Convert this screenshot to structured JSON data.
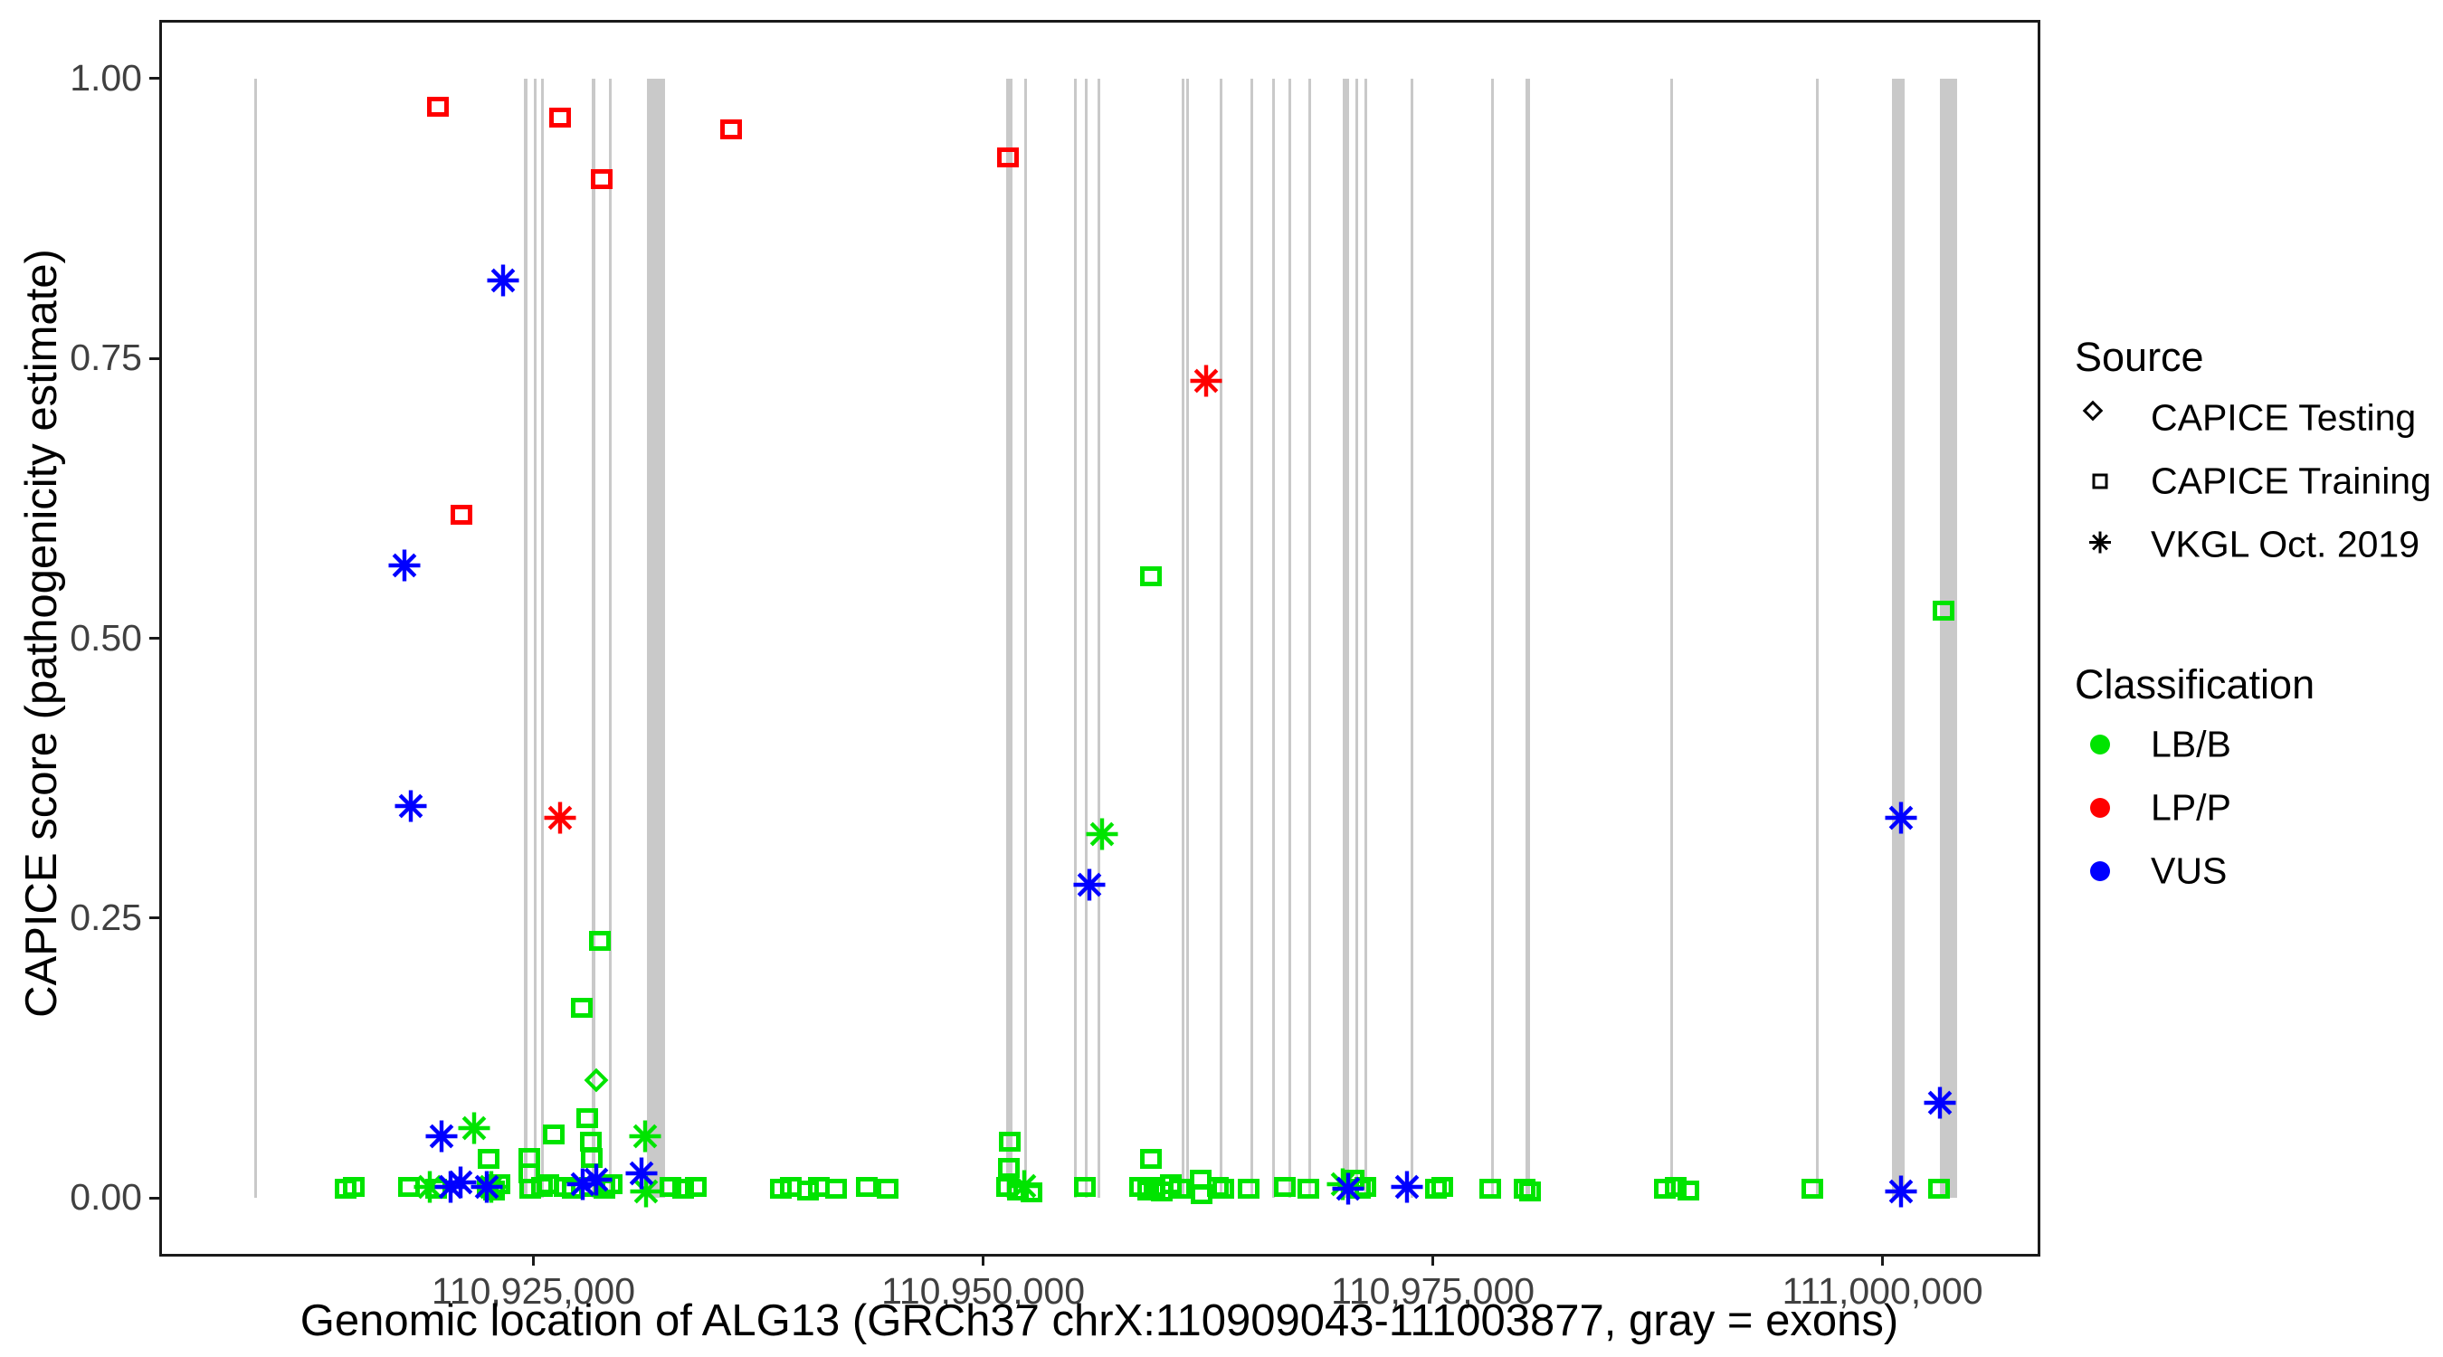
{
  "legend": {
    "source": {
      "title": "Source",
      "items": [
        {
          "label": "CAPICE Testing",
          "shape": "diamond"
        },
        {
          "label": "CAPICE Training",
          "shape": "square"
        },
        {
          "label": "VKGL Oct. 2019",
          "shape": "asterisk"
        }
      ]
    },
    "classification": {
      "title": "Classification",
      "items": [
        {
          "label": "LB/B",
          "color": "#00e400"
        },
        {
          "label": "LP/P",
          "color": "#ff0000"
        },
        {
          "label": "VUS",
          "color": "#0000ff"
        }
      ]
    }
  },
  "chart_data": {
    "type": "scatter",
    "xlabel": "Genomic location of ALG13 (GRCh37 chrX:110909043-111003877, gray = exons)",
    "ylabel": "CAPICE score (pathogenicity estimate)",
    "x_domain": [
      110904300,
      111008620
    ],
    "y_domain": [
      -0.05,
      1.05
    ],
    "grid": false,
    "legend_position": "right",
    "x_ticks": [
      {
        "value": 110925000,
        "label": "110,925,000"
      },
      {
        "value": 110950000,
        "label": "110,950,000"
      },
      {
        "value": 110975000,
        "label": "110,975,000"
      },
      {
        "value": 111000000,
        "label": "111,000,000"
      }
    ],
    "y_ticks": [
      {
        "value": 0.0,
        "label": "0.00"
      },
      {
        "value": 0.25,
        "label": "0.25"
      },
      {
        "value": 0.5,
        "label": "0.50"
      },
      {
        "value": 0.75,
        "label": "0.75"
      },
      {
        "value": 1.0,
        "label": "1.00"
      }
    ],
    "exon_color": "#c9c9c9",
    "exons": [
      [
        110909490,
        110909650
      ],
      [
        110924450,
        110924650
      ],
      [
        110925000,
        110925160
      ],
      [
        110925400,
        110925560
      ],
      [
        110928260,
        110928420
      ],
      [
        110929220,
        110929370
      ],
      [
        110931330,
        110932330
      ],
      [
        110951260,
        110951610
      ],
      [
        110952260,
        110952410
      ],
      [
        110955070,
        110955220
      ],
      [
        110955670,
        110955820
      ],
      [
        110956380,
        110956530
      ],
      [
        110961040,
        110961200
      ],
      [
        110961300,
        110961450
      ],
      [
        110963150,
        110963300
      ],
      [
        110964860,
        110965010
      ],
      [
        110966060,
        110966210
      ],
      [
        110966970,
        110967120
      ],
      [
        110968070,
        110968220
      ],
      [
        110969980,
        110970330
      ],
      [
        110970680,
        110970830
      ],
      [
        110971180,
        110971340
      ],
      [
        110973740,
        110973900
      ],
      [
        110978260,
        110978410
      ],
      [
        110980170,
        110980420
      ],
      [
        110988200,
        110988350
      ],
      [
        110996290,
        110996440
      ],
      [
        111000500,
        111001210
      ],
      [
        111003210,
        111004170
      ]
    ],
    "series": [
      {
        "name": "CAPICE Training — LB/B",
        "source": "CAPICE Training",
        "classification": "LB/B",
        "shape": "square",
        "color": "#00e400",
        "points": [
          [
            110914550,
            0.008
          ],
          [
            110915000,
            0.01
          ],
          [
            110918100,
            0.01
          ],
          [
            110919600,
            0.008
          ],
          [
            110922500,
            0.035
          ],
          [
            110922450,
            0.01
          ],
          [
            110922800,
            0.007
          ],
          [
            110923100,
            0.012
          ],
          [
            110924750,
            0.036
          ],
          [
            110924750,
            0.022
          ],
          [
            110924800,
            0.008
          ],
          [
            110925450,
            0.01
          ],
          [
            110925850,
            0.012
          ],
          [
            110926150,
            0.057
          ],
          [
            110926750,
            0.01
          ],
          [
            110927200,
            0.008
          ],
          [
            110927700,
            0.17
          ],
          [
            110928000,
            0.071
          ],
          [
            110928200,
            0.05
          ],
          [
            110928250,
            0.036
          ],
          [
            110928150,
            0.01
          ],
          [
            110928700,
            0.23
          ],
          [
            110928950,
            0.008
          ],
          [
            110929350,
            0.012
          ],
          [
            110932600,
            0.01
          ],
          [
            110933300,
            0.008
          ],
          [
            110934000,
            0.01
          ],
          [
            110938750,
            0.008
          ],
          [
            110939300,
            0.01
          ],
          [
            110940260,
            0.007
          ],
          [
            110940860,
            0.01
          ],
          [
            110941820,
            0.008
          ],
          [
            110943520,
            0.01
          ],
          [
            110944680,
            0.008
          ],
          [
            110951500,
            0.05
          ],
          [
            110951450,
            0.027
          ],
          [
            110951350,
            0.01
          ],
          [
            110951950,
            0.007
          ],
          [
            110952700,
            0.005
          ],
          [
            110955670,
            0.01
          ],
          [
            110958740,
            0.01
          ],
          [
            110959150,
            0.007
          ],
          [
            110959550,
            0.01
          ],
          [
            110959950,
            0.006
          ],
          [
            110960450,
            0.012
          ],
          [
            110960950,
            0.008
          ],
          [
            110959340,
            0.555
          ],
          [
            110959300,
            0.035
          ],
          [
            110962100,
            0.016
          ],
          [
            110962150,
            0.003
          ],
          [
            110963050,
            0.01
          ],
          [
            110963350,
            0.008
          ],
          [
            110964760,
            0.008
          ],
          [
            110966770,
            0.01
          ],
          [
            110968070,
            0.008
          ],
          [
            110970600,
            0.016
          ],
          [
            110970950,
            0.008
          ],
          [
            110971250,
            0.01
          ],
          [
            110975150,
            0.008
          ],
          [
            110975500,
            0.01
          ],
          [
            110978200,
            0.008
          ],
          [
            110980100,
            0.008
          ],
          [
            110980400,
            0.006
          ],
          [
            110987900,
            0.008
          ],
          [
            110988500,
            0.01
          ],
          [
            110989200,
            0.007
          ],
          [
            110996100,
            0.008
          ],
          [
            111003150,
            0.008
          ],
          [
            111003400,
            0.525
          ]
        ]
      },
      {
        "name": "CAPICE Testing — LB/B",
        "source": "CAPICE Testing",
        "classification": "LB/B",
        "shape": "diamond",
        "color": "#00e400",
        "points": [
          [
            110928500,
            0.105
          ]
        ]
      },
      {
        "name": "VKGL Oct. 2019 — LB/B",
        "source": "VKGL Oct. 2019",
        "classification": "LB/B",
        "shape": "asterisk",
        "color": "#00e400",
        "points": [
          [
            110919220,
            0.01
          ],
          [
            110921700,
            0.062
          ],
          [
            110922640,
            0.01
          ],
          [
            110931200,
            0.055
          ],
          [
            110931250,
            0.006
          ],
          [
            110952260,
            0.011
          ],
          [
            110956600,
            0.325
          ],
          [
            110969980,
            0.012
          ]
        ]
      },
      {
        "name": "VKGL Oct. 2019 — VUS",
        "source": "VKGL Oct. 2019",
        "classification": "VUS",
        "shape": "asterisk",
        "color": "#0000ff",
        "points": [
          [
            110917850,
            0.565
          ],
          [
            110918200,
            0.35
          ],
          [
            110919900,
            0.055
          ],
          [
            110920380,
            0.01
          ],
          [
            110920930,
            0.014
          ],
          [
            110922390,
            0.01
          ],
          [
            110923300,
            0.82
          ],
          [
            110927760,
            0.012
          ],
          [
            110928510,
            0.016
          ],
          [
            110931020,
            0.022
          ],
          [
            110955900,
            0.28
          ],
          [
            110970280,
            0.008
          ],
          [
            110973550,
            0.01
          ],
          [
            111001000,
            0.34
          ],
          [
            111001000,
            0.006
          ],
          [
            111003200,
            0.085
          ]
        ]
      },
      {
        "name": "CAPICE Training — LP/P",
        "source": "CAPICE Training",
        "classification": "LP/P",
        "shape": "square",
        "color": "#ff0000",
        "points": [
          [
            110919700,
            0.975
          ],
          [
            110926500,
            0.965
          ],
          [
            110928800,
            0.91
          ],
          [
            110936000,
            0.955
          ],
          [
            110951400,
            0.93
          ],
          [
            110921000,
            0.61
          ]
        ]
      },
      {
        "name": "VKGL Oct. 2019 — LP/P",
        "source": "VKGL Oct. 2019",
        "classification": "LP/P",
        "shape": "asterisk",
        "color": "#ff0000",
        "points": [
          [
            110926500,
            0.34
          ],
          [
            110962400,
            0.73
          ]
        ]
      }
    ]
  }
}
